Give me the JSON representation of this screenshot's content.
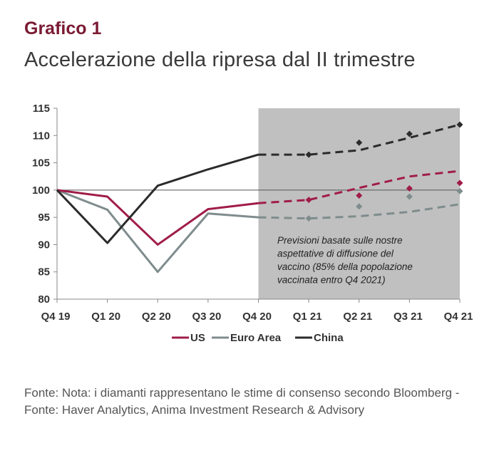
{
  "header": {
    "label": "Grafico 1",
    "title": "Accelerazione della ripresa dal II trimestre"
  },
  "footnote": "Fonte: Nota: i diamanti rappresentano le stime di consenso secondo Bloomberg - Fonte: Haver Analytics, Anima Investment Research & Advisory",
  "chart_data": {
    "type": "line",
    "categories": [
      "Q4 19",
      "Q1 20",
      "Q2 20",
      "Q3 20",
      "Q4 20",
      "Q1 21",
      "Q2 21",
      "Q3 21",
      "Q4 21"
    ],
    "ylim": [
      80,
      115
    ],
    "yticks": [
      80,
      85,
      90,
      95,
      100,
      105,
      110,
      115
    ],
    "reference_line": 100,
    "forecast_region": [
      "Q4 20",
      "Q4 21"
    ],
    "annotation": [
      "Previsioni basate sulle nostre",
      "aspettative di diffusione del",
      "vaccino (85% della popolazione",
      "vaccinata entro Q4 2021)"
    ],
    "legend_position": "bottom",
    "series": [
      {
        "name": "US",
        "color": "#a01c48",
        "actual": [
          100,
          98.8,
          90.0,
          96.5,
          97.6
        ],
        "forecast": [
          97.6,
          98.2,
          100.4,
          102.5,
          103.5
        ],
        "consensus": [
          97.6,
          98.2,
          99.0,
          100.3,
          101.3
        ]
      },
      {
        "name": "Euro Area",
        "color": "#7f8c8d",
        "actual": [
          100,
          96.4,
          85.0,
          95.7,
          95.0
        ],
        "forecast": [
          95.0,
          94.8,
          95.2,
          96.0,
          97.4
        ],
        "consensus": [
          95.0,
          94.8,
          97.0,
          98.8,
          99.8
        ]
      },
      {
        "name": "China",
        "color": "#2b2b2b",
        "actual": [
          100,
          90.3,
          100.8,
          103.8,
          106.5
        ],
        "forecast": [
          106.5,
          106.5,
          107.3,
          109.6,
          112.0
        ],
        "consensus": [
          106.5,
          106.5,
          108.7,
          110.3,
          112.0
        ]
      }
    ]
  }
}
